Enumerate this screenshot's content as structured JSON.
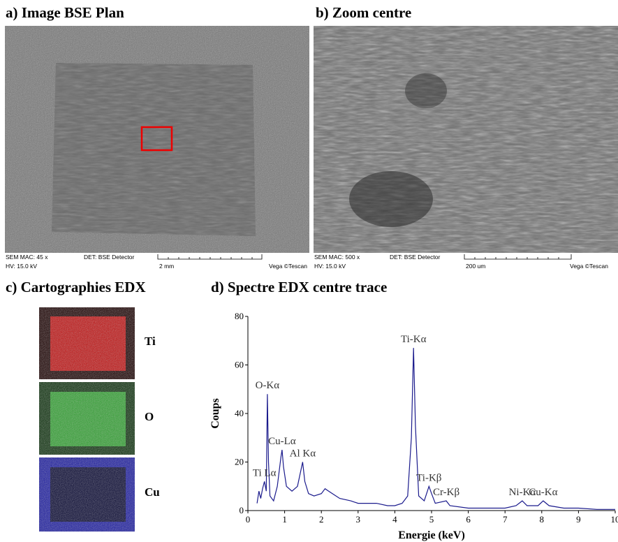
{
  "panels": {
    "a": {
      "title": "a) Image BSE Plan",
      "info": {
        "mag": "SEM MAC: 45 x",
        "detector": "DET: BSE Detector",
        "hv": "HV:  15.0 kV",
        "scale": "2 mm",
        "brand": "Vega ©Tescan"
      }
    },
    "b": {
      "title": "b) Zoom centre",
      "info": {
        "mag": "SEM MAC: 500 x",
        "detector": "DET: BSE Detector",
        "hv": "HV:  15.0 kV",
        "scale": "200 um",
        "brand": "Vega ©Tescan"
      }
    },
    "c": {
      "title": "c) Cartographies EDX",
      "maps": [
        "Ti",
        "O",
        "Cu"
      ]
    }
  },
  "chart_data": {
    "type": "line",
    "title": "d) Spectre EDX centre trace",
    "x_label": "Energie (keV)",
    "y_label": "Coups",
    "color": "#1a1a8c",
    "x": [
      0.25,
      0.3,
      0.35,
      0.4,
      0.45,
      0.5,
      0.53,
      0.56,
      0.6,
      0.7,
      0.8,
      0.9,
      0.93,
      0.97,
      1.05,
      1.2,
      1.35,
      1.49,
      1.55,
      1.65,
      1.8,
      2.0,
      2.1,
      2.2,
      2.3,
      2.5,
      2.8,
      3.0,
      3.3,
      3.5,
      3.8,
      4.0,
      4.2,
      4.35,
      4.45,
      4.51,
      4.56,
      4.65,
      4.8,
      4.93,
      5.0,
      5.1,
      5.4,
      5.5,
      6.0,
      6.5,
      7.0,
      7.3,
      7.47,
      7.6,
      7.9,
      8.04,
      8.2,
      8.6,
      9.0,
      9.5,
      10.0
    ],
    "values": [
      3,
      8,
      5,
      9,
      12,
      8,
      48,
      20,
      6,
      4,
      10,
      22,
      25,
      18,
      10,
      8,
      10,
      20,
      12,
      7,
      6,
      7,
      9,
      8,
      7,
      5,
      4,
      3,
      3,
      3,
      2,
      2,
      3,
      6,
      30,
      67,
      35,
      6,
      4,
      10,
      7,
      3,
      4,
      2,
      1,
      1,
      1,
      2,
      4,
      2,
      2,
      4,
      2,
      1,
      1,
      0.5,
      0.5
    ],
    "annotations": [
      {
        "text": "Ti Lα",
        "x": 0.45,
        "y": 12
      },
      {
        "text": "O-Kα",
        "x": 0.53,
        "y": 48
      },
      {
        "text": "Cu-Lα",
        "x": 0.93,
        "y": 25
      },
      {
        "text": "Al Kα",
        "x": 1.49,
        "y": 20
      },
      {
        "text": "Ti-Kα",
        "x": 4.51,
        "y": 67
      },
      {
        "text": "Ti-Kβ",
        "x": 4.93,
        "y": 10
      },
      {
        "text": "Cr-Kβ",
        "x": 5.4,
        "y": 4
      },
      {
        "text": "Ni-Kα",
        "x": 7.47,
        "y": 4
      },
      {
        "text": "Cu-Kα",
        "x": 8.04,
        "y": 4
      }
    ],
    "xlim": [
      0,
      10
    ],
    "xticks": [
      0,
      1,
      2,
      3,
      4,
      5,
      6,
      7,
      8,
      9,
      10
    ],
    "ylim": [
      0,
      80
    ],
    "yticks": [
      0,
      20,
      40,
      60,
      80
    ]
  }
}
